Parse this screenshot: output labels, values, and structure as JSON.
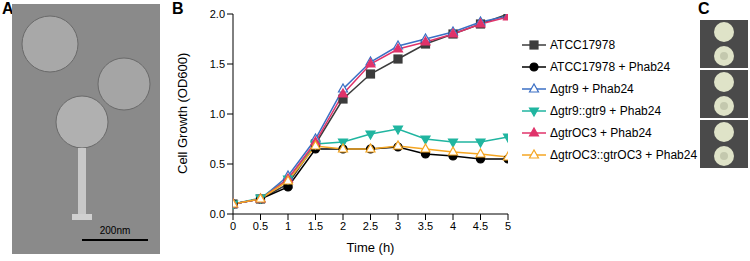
{
  "panel_labels": [
    "A",
    "B",
    "C"
  ],
  "scale_bar": "200nm",
  "chart_data": {
    "type": "line",
    "x_label": "Time (h)",
    "y_label": "Cell Growth (OD600)",
    "x": [
      0,
      0.5,
      1,
      1.5,
      2,
      2.5,
      3,
      3.5,
      4,
      4.5,
      5
    ],
    "xlim": [
      0,
      5
    ],
    "xticks": [
      0,
      0.5,
      1,
      1.5,
      2,
      2.5,
      3,
      3.5,
      4,
      4.5,
      5
    ],
    "ylim": [
      0,
      2
    ],
    "yticks": [
      {
        "value": 0,
        "label": "0.0"
      },
      0.5,
      {
        "value": 1,
        "label": "1.0"
      },
      1.5,
      {
        "value": 2,
        "label": "2.0"
      }
    ],
    "grid": false,
    "legend": "right",
    "series": [
      {
        "name": "ATCC17978",
        "color": "#3c3c3c",
        "marker": "square",
        "values": [
          0.1,
          0.15,
          0.3,
          0.7,
          1.15,
          1.4,
          1.55,
          1.7,
          1.8,
          1.9,
          2.0
        ]
      },
      {
        "name": "ATCC17978 + Phab24",
        "color": "#000000",
        "marker": "circle",
        "values": [
          0.1,
          0.15,
          0.27,
          0.65,
          0.65,
          0.65,
          0.67,
          0.6,
          0.58,
          0.55,
          0.55
        ]
      },
      {
        "name": "Δgtr9 + Phab24",
        "color": "#3b6fc4",
        "marker": "open_triangle",
        "values": [
          0.1,
          0.15,
          0.38,
          0.75,
          1.25,
          1.52,
          1.68,
          1.75,
          1.82,
          1.92,
          1.98
        ]
      },
      {
        "name": "Δgtr9::gtr9 + Phab24",
        "color": "#20b5a0",
        "marker": "triangle_down",
        "values": [
          0.1,
          0.16,
          0.35,
          0.7,
          0.72,
          0.8,
          0.85,
          0.75,
          0.72,
          0.72,
          0.77
        ]
      },
      {
        "name": "ΔgtrOC3 + Phab24",
        "color": "#e0336a",
        "marker": "triangle",
        "values": [
          0.1,
          0.15,
          0.35,
          0.72,
          1.2,
          1.5,
          1.65,
          1.72,
          1.8,
          1.9,
          1.97
        ]
      },
      {
        "name": "ΔgtrOC3::gtrOC3 + Phab24",
        "color": "#f5a623",
        "marker": "open_triangle",
        "values": [
          0.1,
          0.15,
          0.33,
          0.68,
          0.65,
          0.65,
          0.68,
          0.65,
          0.62,
          0.6,
          0.57
        ]
      }
    ]
  }
}
